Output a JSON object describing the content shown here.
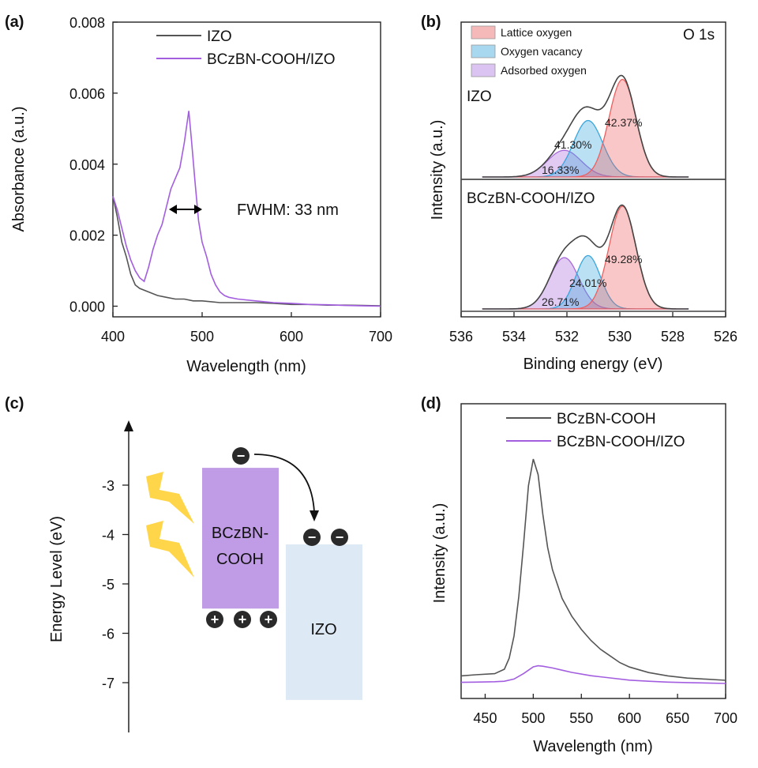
{
  "chart_data": [
    {
      "panel": "(a)",
      "type": "line",
      "xlabel": "Wavelength (nm)",
      "ylabel": "Absorbance (a.u.)",
      "xlim": [
        400,
        700
      ],
      "ylim": [
        -0.0003,
        0.008
      ],
      "xticks": [
        400,
        500,
        600,
        700
      ],
      "yticks": [
        0.0,
        0.002,
        0.004,
        0.006,
        0.008
      ],
      "ytick_labels": [
        "0.000",
        "0.002",
        "0.004",
        "0.006",
        "0.008"
      ],
      "annotation": "FWHM: 33 nm",
      "series": [
        {
          "name": "IZO",
          "color": "#555555",
          "x": [
            400,
            405,
            410,
            415,
            420,
            425,
            430,
            440,
            450,
            460,
            470,
            480,
            490,
            500,
            520,
            540,
            560,
            580,
            600,
            620,
            640,
            660,
            680,
            700
          ],
          "y": [
            0.0031,
            0.0025,
            0.0018,
            0.0014,
            0.0009,
            0.0006,
            0.0005,
            0.0004,
            0.0003,
            0.00025,
            0.0002,
            0.0002,
            0.00015,
            0.00015,
            0.0001,
            0.0001,
            0.0001,
            8e-05,
            5e-05,
            5e-05,
            3e-05,
            3e-05,
            2e-05,
            1e-05
          ]
        },
        {
          "name": "BCzBN-COOH/IZO",
          "color": "#a35ee0",
          "x": [
            400,
            405,
            410,
            415,
            420,
            425,
            430,
            435,
            440,
            445,
            450,
            455,
            460,
            465,
            470,
            475,
            480,
            485,
            488,
            492,
            496,
            500,
            505,
            510,
            515,
            520,
            525,
            530,
            540,
            560,
            580,
            600,
            620,
            640,
            660,
            680,
            700
          ],
          "y": [
            0.0031,
            0.0027,
            0.0022,
            0.0017,
            0.0013,
            0.001,
            0.0008,
            0.0007,
            0.0011,
            0.0016,
            0.002,
            0.0023,
            0.0028,
            0.0033,
            0.0036,
            0.0039,
            0.0046,
            0.0055,
            0.0047,
            0.0035,
            0.0024,
            0.0018,
            0.0014,
            0.0009,
            0.0006,
            0.0004,
            0.0003,
            0.00025,
            0.0002,
            0.00015,
            0.0001,
            8e-05,
            5e-05,
            4e-05,
            2e-05,
            1e-05,
            0.0
          ]
        }
      ]
    },
    {
      "panel": "(b)",
      "type": "area",
      "title": "O 1s",
      "xlabel": "Binding energy (eV)",
      "ylabel": "Intensity (a.u.)",
      "xlim": [
        536,
        526
      ],
      "xticks": [
        536,
        534,
        532,
        530,
        528,
        526
      ],
      "legend": [
        "Lattice oxygen",
        "Oxygen vacancy",
        "Adsorbed oxygen"
      ],
      "component_colors": {
        "Lattice oxygen": "#ef5f5f",
        "Oxygen vacancy": "#3aa6dc",
        "Adsorbed oxygen": "#a86ad9"
      },
      "spectra": [
        {
          "sample": "IZO",
          "components": [
            {
              "name": "Adsorbed oxygen",
              "center": 532.1,
              "fwhm": 1.5,
              "height": 0.26,
              "percent": "16.33%"
            },
            {
              "name": "Oxygen vacancy",
              "center": 531.2,
              "fwhm": 1.3,
              "height": 0.55,
              "percent": "41.30%"
            },
            {
              "name": "Lattice oxygen",
              "center": 529.9,
              "fwhm": 1.2,
              "height": 0.95,
              "percent": "42.37%"
            }
          ]
        },
        {
          "sample": "BCzBN-COOH/IZO",
          "components": [
            {
              "name": "Adsorbed oxygen",
              "center": 532.1,
              "fwhm": 1.3,
              "height": 0.5,
              "percent": "26.71%"
            },
            {
              "name": "Oxygen vacancy",
              "center": 531.2,
              "fwhm": 1.1,
              "height": 0.52,
              "percent": "24.01%"
            },
            {
              "name": "Lattice oxygen",
              "center": 529.9,
              "fwhm": 1.2,
              "height": 1.0,
              "percent": "49.28%"
            }
          ]
        }
      ]
    },
    {
      "panel": "(c)",
      "type": "diagram",
      "ylabel": "Energy Level (eV)",
      "yticks": [
        -3,
        -4,
        -5,
        -6,
        -7
      ],
      "ytick_labels": [
        "-3",
        "-4",
        "-5",
        "-6",
        "-7"
      ],
      "bands": [
        {
          "name": "BCzBN-COOH",
          "label_line1": "BCzBN-",
          "label_line2": "COOH",
          "top": -2.65,
          "bottom": -5.5,
          "color": "#c09be6"
        },
        {
          "name": "IZO",
          "label": "IZO",
          "top": -4.2,
          "bottom": -7.35,
          "color": "#dde9f5"
        }
      ],
      "charges": {
        "electron_symbol": "−",
        "hole_symbol": "+"
      }
    },
    {
      "panel": "(d)",
      "type": "line",
      "xlabel": "Wavelength (nm)",
      "ylabel": "Intensity (a.u.)",
      "xlim": [
        425,
        700
      ],
      "ylim": [
        -0.05,
        1.1
      ],
      "xticks": [
        450,
        500,
        550,
        600,
        650,
        700
      ],
      "series": [
        {
          "name": "BCzBN-COOH",
          "color": "#555555",
          "x": [
            425,
            440,
            460,
            470,
            475,
            480,
            485,
            490,
            495,
            500,
            505,
            510,
            515,
            520,
            530,
            540,
            550,
            560,
            570,
            580,
            590,
            600,
            620,
            640,
            660,
            680,
            700
          ],
          "y": [
            0.02,
            0.025,
            0.03,
            0.05,
            0.1,
            0.2,
            0.38,
            0.62,
            0.88,
            1.0,
            0.93,
            0.75,
            0.6,
            0.5,
            0.37,
            0.29,
            0.23,
            0.18,
            0.14,
            0.11,
            0.08,
            0.06,
            0.035,
            0.02,
            0.01,
            0.005,
            0.0
          ]
        },
        {
          "name": "BCzBN-COOH/IZO",
          "color": "#a35ee0",
          "x": [
            425,
            440,
            460,
            470,
            480,
            490,
            495,
            500,
            505,
            510,
            520,
            530,
            540,
            560,
            580,
            600,
            620,
            640,
            660,
            680,
            700
          ],
          "y": [
            0.005,
            0.006,
            0.008,
            0.01,
            0.02,
            0.045,
            0.06,
            0.075,
            0.08,
            0.078,
            0.07,
            0.06,
            0.05,
            0.035,
            0.025,
            0.015,
            0.01,
            0.006,
            0.004,
            0.002,
            0.0
          ]
        }
      ]
    }
  ]
}
